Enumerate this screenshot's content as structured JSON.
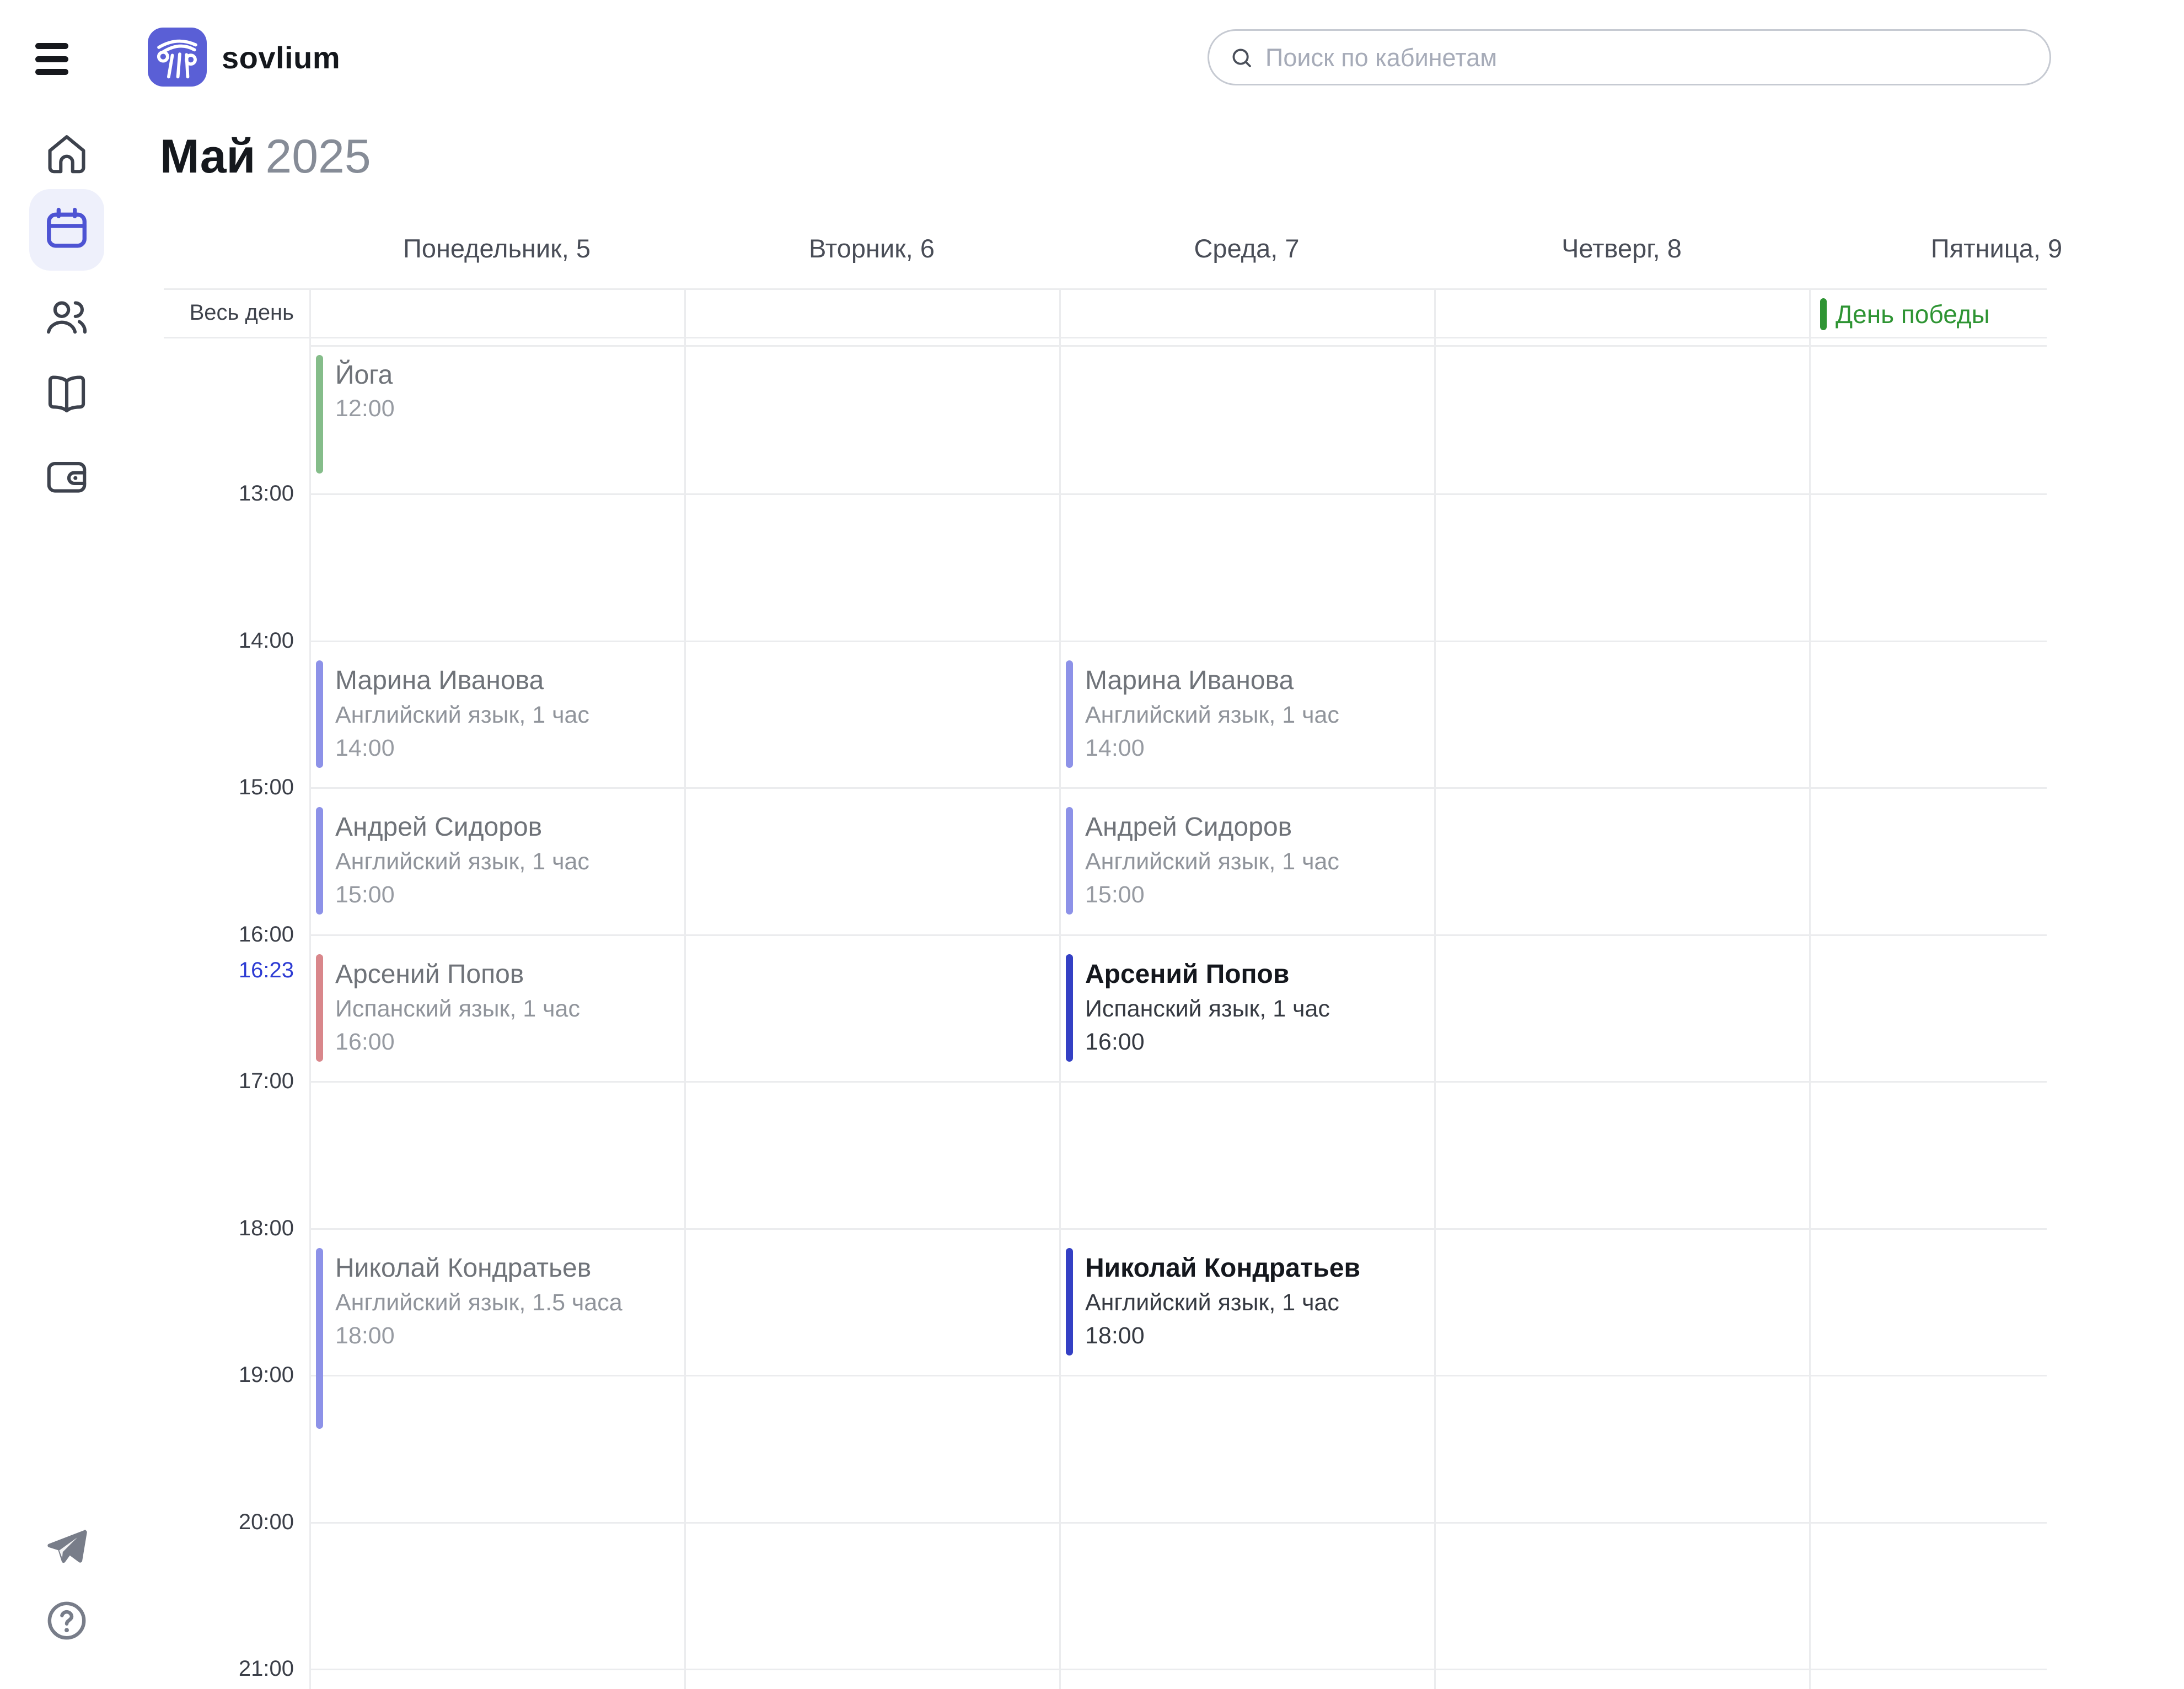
{
  "topbar": {
    "brand": "sovlium",
    "search_placeholder": "Поиск по кабинетам"
  },
  "title": {
    "month": "Май",
    "year": "2025"
  },
  "sidebar": {
    "items": [
      {
        "icon": "home-icon",
        "selected": false
      },
      {
        "icon": "calendar-icon",
        "selected": true
      },
      {
        "icon": "clients-icon",
        "selected": false
      },
      {
        "icon": "journal-icon",
        "selected": false
      },
      {
        "icon": "wallet-icon",
        "selected": false
      }
    ],
    "footer": [
      {
        "icon": "telegram-icon"
      },
      {
        "icon": "help-icon"
      }
    ]
  },
  "calendar": {
    "all_day_label": "Весь день",
    "days": [
      {
        "label": "Понедельник, 5"
      },
      {
        "label": "Вторник, 6"
      },
      {
        "label": "Среда, 7"
      },
      {
        "label": "Четверг, 8"
      },
      {
        "label": "Пятница, 9"
      }
    ],
    "hours": [
      "13:00",
      "14:00",
      "15:00",
      "16:00",
      "17:00",
      "18:00",
      "19:00",
      "20:00",
      "21:00"
    ],
    "current_time": "16:23",
    "all_day_events": [
      {
        "day": 4,
        "title": "День победы",
        "color": "holiday"
      }
    ],
    "events": [
      {
        "day": 0,
        "title": "Йога",
        "subtitle": "",
        "time": "12:00",
        "start": 12,
        "duration": 1,
        "color": "green",
        "emphasis": false
      },
      {
        "day": 0,
        "title": "Марина Иванова",
        "subtitle": "Английский язык, 1 час",
        "time": "14:00",
        "start": 14,
        "duration": 1,
        "color": "periwinkle",
        "emphasis": false
      },
      {
        "day": 0,
        "title": "Андрей Сидоров",
        "subtitle": "Английский язык, 1 час",
        "time": "15:00",
        "start": 15,
        "duration": 1,
        "color": "periwinkle",
        "emphasis": false
      },
      {
        "day": 0,
        "title": "Арсений Попов",
        "subtitle": "Испанский язык, 1 час",
        "time": "16:00",
        "start": 16,
        "duration": 1,
        "color": "red",
        "emphasis": false
      },
      {
        "day": 0,
        "title": "Николай Кондратьев",
        "subtitle": "Английский язык, 1.5 часа",
        "time": "18:00",
        "start": 18,
        "duration": 1.5,
        "color": "periwinkle",
        "emphasis": false
      },
      {
        "day": 2,
        "title": "Марина Иванова",
        "subtitle": "Английский язык, 1 час",
        "time": "14:00",
        "start": 14,
        "duration": 1,
        "color": "periwinkle",
        "emphasis": false
      },
      {
        "day": 2,
        "title": "Андрей Сидоров",
        "subtitle": "Английский язык, 1 час",
        "time": "15:00",
        "start": 15,
        "duration": 1,
        "color": "periwinkle",
        "emphasis": false
      },
      {
        "day": 2,
        "title": "Арсений Попов",
        "subtitle": "Испанский язык, 1 час",
        "time": "16:00",
        "start": 16,
        "duration": 1,
        "color": "indigo",
        "emphasis": true
      },
      {
        "day": 2,
        "title": "Николай Кондратьев",
        "subtitle": "Английский язык, 1 час",
        "time": "18:00",
        "start": 18,
        "duration": 1,
        "color": "indigo",
        "emphasis": true
      }
    ]
  },
  "colors": {
    "accent": "#4d53d3",
    "logo": "#5a5fd6",
    "event_periwinkle": "#8d92e8",
    "event_indigo": "#3440c4",
    "event_red": "#d9878b",
    "event_green": "#85bd8a",
    "holiday_green": "#2e9433",
    "current_time_blue": "#2d3bd3"
  }
}
